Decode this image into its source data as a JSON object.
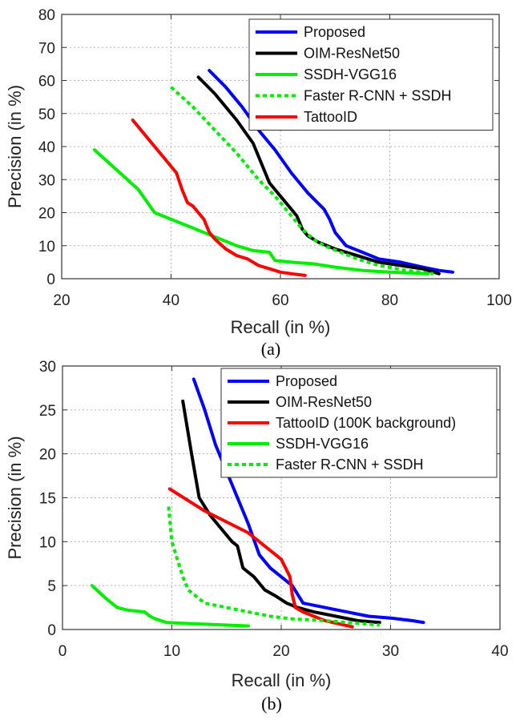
{
  "chart_data": [
    {
      "type": "line",
      "caption": "(a)",
      "xlabel": "Recall (in %)",
      "ylabel": "Precision (in %)",
      "xlim": [
        20,
        100
      ],
      "ylim": [
        0,
        80
      ],
      "xticks": [
        20,
        40,
        60,
        80,
        100
      ],
      "yticks": [
        0,
        10,
        20,
        30,
        40,
        50,
        60,
        70,
        80
      ],
      "grid": true,
      "legend": "top-right",
      "series": [
        {
          "name": "Proposed",
          "color": "#0000ff",
          "dash": "solid",
          "x": [
            47,
            50,
            53,
            56,
            59,
            62,
            65,
            68,
            69,
            70,
            72,
            75,
            78,
            82,
            86,
            89,
            91.5
          ],
          "y": [
            63,
            58,
            52,
            45,
            39,
            32,
            26,
            21,
            18,
            14,
            10,
            8,
            6,
            5,
            3.5,
            2.5,
            2
          ]
        },
        {
          "name": "OIM-ResNet50",
          "color": "#000000",
          "dash": "solid",
          "x": [
            45,
            48,
            52,
            55,
            57,
            58,
            60,
            62,
            63,
            64,
            65,
            67,
            70,
            74,
            78,
            82,
            86,
            89
          ],
          "y": [
            61,
            56,
            48,
            41,
            33,
            29,
            25,
            21,
            19,
            15,
            13,
            11,
            9,
            7,
            5,
            4,
            3,
            1.5
          ]
        },
        {
          "name": "SSDH-VGG16",
          "color": "#00ee00",
          "dash": "solid",
          "x": [
            26,
            30,
            34,
            37,
            40,
            43,
            46,
            49,
            52,
            55,
            58,
            59,
            62,
            66,
            70,
            75,
            80,
            87
          ],
          "y": [
            39,
            33,
            27,
            20,
            18,
            16,
            14,
            12,
            10,
            8.5,
            8,
            5.5,
            5,
            4.5,
            3.5,
            2.5,
            2,
            1.5
          ]
        },
        {
          "name": "Faster R-CNN + SSDH",
          "color": "#00ee00",
          "dash": "dotted",
          "x": [
            40,
            44,
            48,
            52,
            56,
            59,
            62,
            64,
            66,
            68,
            71,
            74,
            78,
            83,
            88
          ],
          "y": [
            58,
            52,
            45,
            38,
            30,
            25,
            19,
            15,
            12,
            10,
            8,
            6,
            4,
            2.5,
            1.5
          ]
        },
        {
          "name": "TattooID",
          "color": "#ff0000",
          "dash": "solid",
          "x": [
            33,
            36,
            39,
            41,
            42,
            43,
            44,
            45,
            46,
            47,
            48,
            50,
            52,
            54,
            56,
            58,
            60,
            62,
            64.5
          ],
          "y": [
            48,
            42,
            36,
            32,
            27,
            23,
            22,
            20,
            18,
            14,
            12,
            9,
            7,
            6,
            4,
            3,
            2,
            1.5,
            1
          ]
        }
      ]
    },
    {
      "type": "line",
      "caption": "(b)",
      "xlabel": "Recall (in %)",
      "ylabel": "Precision (in %)",
      "xlim": [
        0,
        40
      ],
      "ylim": [
        0,
        30
      ],
      "xticks": [
        0,
        10,
        20,
        30,
        40
      ],
      "yticks": [
        0,
        5,
        10,
        15,
        20,
        25,
        30
      ],
      "grid": true,
      "legend": "top-right",
      "series": [
        {
          "name": "Proposed",
          "color": "#0000ff",
          "dash": "solid",
          "x": [
            12,
            13,
            14,
            15,
            16,
            17,
            18,
            19,
            20,
            21,
            22,
            24,
            26,
            28,
            30,
            32,
            33
          ],
          "y": [
            28.5,
            25,
            21,
            18,
            15,
            12,
            8.5,
            7,
            6,
            5,
            3,
            2.5,
            2,
            1.5,
            1.3,
            1,
            0.8
          ]
        },
        {
          "name": "OIM-ResNet50",
          "color": "#000000",
          "dash": "solid",
          "x": [
            11,
            11.8,
            12.5,
            13.5,
            14.5,
            15.5,
            16,
            16.5,
            17.5,
            18.5,
            19.5,
            20.5,
            21.5,
            23,
            25,
            27,
            29
          ],
          "y": [
            26,
            20,
            15,
            13,
            11.5,
            10,
            9.5,
            7,
            6,
            4.5,
            3.8,
            3,
            2.5,
            2,
            1.5,
            1,
            0.8
          ]
        },
        {
          "name": "TattooID (100K background)",
          "color": "#ff0000",
          "dash": "solid",
          "x": [
            9.8,
            13,
            17,
            20,
            20.8,
            21,
            21.3,
            22,
            24,
            26.5
          ],
          "y": [
            16,
            13.5,
            11,
            8,
            6,
            4,
            2.5,
            2,
            1,
            0.3
          ]
        },
        {
          "name": "SSDH-VGG16",
          "color": "#00ee00",
          "dash": "solid",
          "x": [
            2.7,
            4,
            5,
            6,
            7.5,
            8,
            8.5,
            9.5,
            11,
            13,
            15,
            17
          ],
          "y": [
            5,
            3.5,
            2.5,
            2.2,
            2,
            1.5,
            1.2,
            0.8,
            0.7,
            0.6,
            0.5,
            0.4
          ]
        },
        {
          "name": "Faster R-CNN + SSDH",
          "color": "#00ee00",
          "dash": "dotted",
          "x": [
            9.7,
            10,
            10.5,
            11,
            11.5,
            12,
            13,
            15,
            17,
            19,
            21,
            24,
            27,
            29
          ],
          "y": [
            14,
            10,
            8,
            6,
            4.5,
            4,
            3,
            2.5,
            2,
            1.5,
            1.2,
            1,
            0.7,
            0.5
          ]
        }
      ]
    }
  ]
}
